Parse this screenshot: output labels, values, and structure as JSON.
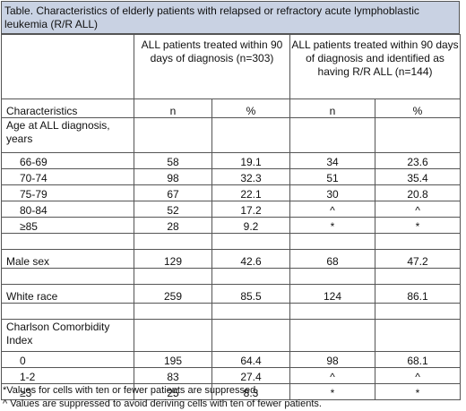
{
  "title": "Table. Characteristics of elderly patients with relapsed or refractory acute lymphoblastic leukemia (R/R ALL)",
  "groups": {
    "g1": "ALL patients treated within 90 days of diagnosis (n=303)",
    "g2": "ALL patients treated within 90 days of diagnosis and identified as having R/R ALL (n=144)"
  },
  "columns": {
    "characteristics": "Characteristics",
    "n1": "n",
    "p1": "%",
    "n2": "n",
    "p2": "%"
  },
  "age": {
    "header": "Age at ALL diagnosis, years",
    "rows": [
      [
        "66-69",
        "58",
        "19.1",
        "34",
        "23.6"
      ],
      [
        "70-74",
        "98",
        "32.3",
        "51",
        "35.4"
      ],
      [
        "75-79",
        "67",
        "22.1",
        "30",
        "20.8"
      ],
      [
        "80-84",
        "52",
        "17.2",
        "^",
        "^"
      ],
      [
        "≥85",
        "28",
        "9.2",
        "*",
        "*"
      ]
    ]
  },
  "male": [
    "Male sex",
    "129",
    "42.6",
    "68",
    "47.2"
  ],
  "white": [
    "White race",
    "259",
    "85.5",
    "124",
    "86.1"
  ],
  "charlson": {
    "header": "Charlson Comorbidity Index",
    "rows": [
      [
        "0",
        "195",
        "64.4",
        "98",
        "68.1"
      ],
      [
        "1-2",
        "83",
        "27.4",
        "^",
        "^"
      ],
      [
        "≥3",
        "25",
        "8.3",
        "*",
        "*"
      ]
    ]
  },
  "footnotes": [
    "*Values for cells with ten or fewer patients are suppressed.",
    "^ Values are suppressed to avoid deriving cells with ten of fewer patients."
  ]
}
